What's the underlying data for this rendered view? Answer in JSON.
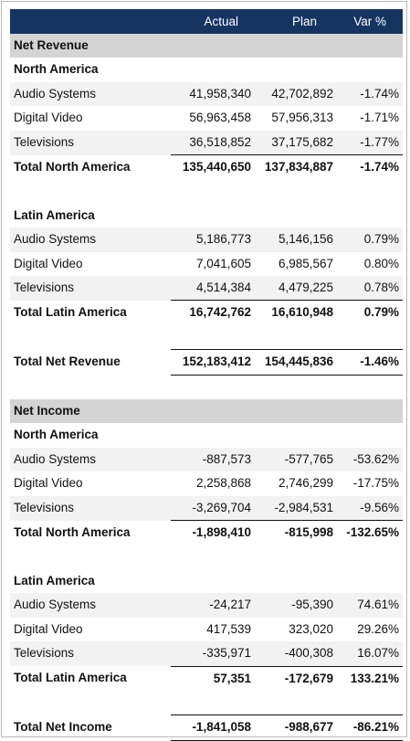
{
  "header": {
    "blank": "",
    "actual": "Actual",
    "plan": "Plan",
    "var": "Var %"
  },
  "sections": [
    {
      "title": "Net Revenue",
      "regions": [
        {
          "name": "North America",
          "rows": [
            {
              "label": "Audio Systems",
              "actual": "41,958,340",
              "plan": "42,702,892",
              "var": "-1.74%"
            },
            {
              "label": "Digital Video",
              "actual": "56,963,458",
              "plan": "57,956,313",
              "var": "-1.71%"
            },
            {
              "label": "Televisions",
              "actual": "36,518,852",
              "plan": "37,175,682",
              "var": "-1.77%"
            }
          ],
          "total": {
            "label": "Total North America",
            "actual": "135,440,650",
            "plan": "137,834,887",
            "var": "-1.74%"
          }
        },
        {
          "name": "Latin America",
          "rows": [
            {
              "label": "Audio Systems",
              "actual": "5,186,773",
              "plan": "5,146,156",
              "var": "0.79%"
            },
            {
              "label": "Digital Video",
              "actual": "7,041,605",
              "plan": "6,985,567",
              "var": "0.80%"
            },
            {
              "label": "Televisions",
              "actual": "4,514,384",
              "plan": "4,479,225",
              "var": "0.78%"
            }
          ],
          "total": {
            "label": "Total Latin America",
            "actual": "16,742,762",
            "plan": "16,610,948",
            "var": "0.79%"
          }
        }
      ],
      "total": {
        "label": "Total Net Revenue",
        "actual": "152,183,412",
        "plan": "154,445,836",
        "var": "-1.46%"
      }
    },
    {
      "title": "Net Income",
      "regions": [
        {
          "name": "North America",
          "rows": [
            {
              "label": "Audio Systems",
              "actual": "-887,573",
              "plan": "-577,765",
              "var": "-53.62%"
            },
            {
              "label": "Digital Video",
              "actual": "2,258,868",
              "plan": "2,746,299",
              "var": "-17.75%"
            },
            {
              "label": "Televisions",
              "actual": "-3,269,704",
              "plan": "-2,984,531",
              "var": "-9.56%"
            }
          ],
          "total": {
            "label": "Total North America",
            "actual": "-1,898,410",
            "plan": "-815,998",
            "var": "-132.65%"
          }
        },
        {
          "name": "Latin America",
          "rows": [
            {
              "label": "Audio Systems",
              "actual": "-24,217",
              "plan": "-95,390",
              "var": "74.61%"
            },
            {
              "label": "Digital Video",
              "actual": "417,539",
              "plan": "323,020",
              "var": "29.26%"
            },
            {
              "label": "Televisions",
              "actual": "-335,971",
              "plan": "-400,308",
              "var": "16.07%"
            }
          ],
          "total": {
            "label": "Total Latin America",
            "actual": "57,351",
            "plan": "-172,679",
            "var": "133.21%"
          }
        }
      ],
      "total": {
        "label": "Total Net Income",
        "actual": "-1,841,058",
        "plan": "-988,677",
        "var": "-86.21%"
      }
    }
  ]
}
